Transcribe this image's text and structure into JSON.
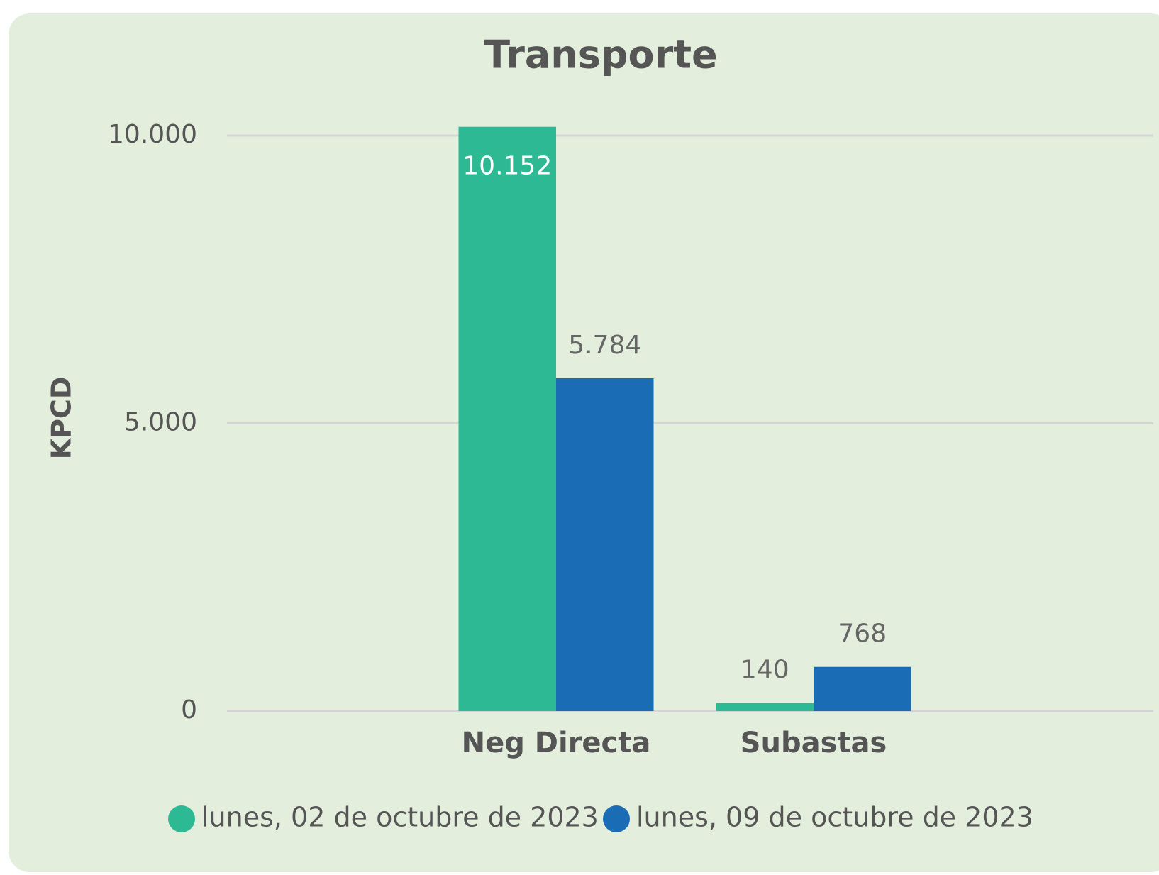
{
  "chart_data": {
    "type": "bar",
    "title": "Transporte",
    "y_label": "KPCD",
    "categories": [
      "Neg Directa",
      "Subastas"
    ],
    "series": [
      {
        "name": "lunes, 02 de octubre de 2023",
        "color": "#2db994",
        "values": [
          10152,
          140
        ],
        "value_labels": [
          "10.152",
          "140"
        ]
      },
      {
        "name": "lunes, 09 de octubre de 2023",
        "color": "#1a6db5",
        "values": [
          5784,
          768
        ],
        "value_labels": [
          "5.784",
          "768"
        ]
      }
    ],
    "ylim": [
      0,
      10000
    ],
    "yticks": [
      0,
      {
        "value": 5000,
        "label": "5.000"
      },
      {
        "value": 10000,
        "label": "10.000"
      }
    ],
    "grid": true,
    "legend": "bottom"
  }
}
